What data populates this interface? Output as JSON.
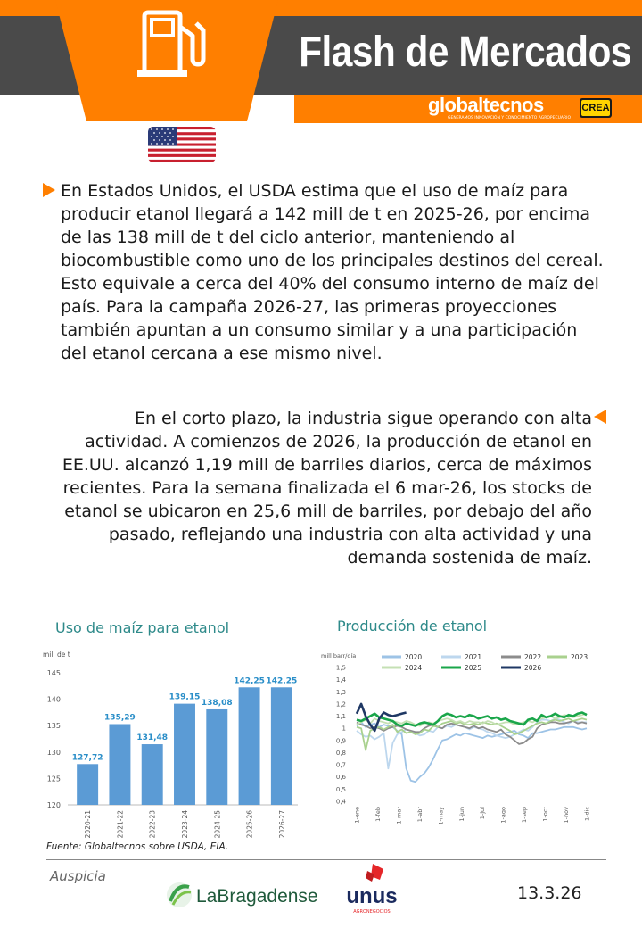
{
  "header": {
    "title": "Flash de Mercados",
    "brand_name": "globaltecnos",
    "brand_tagline": "GENERAMOS INNOVACIÓN Y CONOCIMIENTO AGROPECUARIO",
    "partner_badge": "CREA",
    "icon": "fuel-pump-icon",
    "colors": {
      "orange": "#ff7f00",
      "gray": "#4a4a4a"
    }
  },
  "flag": {
    "icon": "us-flag-icon"
  },
  "paragraphs": [
    "En Estados Unidos, el USDA estima que el uso de maíz para producir etanol llegará a 142 mill de t en 2025-26, por encima de las 138 mill de t del ciclo anterior, manteniendo al biocombustible como uno de los principales destinos del cereal. Esto equivale a cerca del 40% del consumo interno de maíz del país. Para la campaña 2026-27, las primeras proyecciones también apuntan a un consumo similar y a una participación del etanol cercana a ese mismo nivel.",
    "En el corto plazo, la industria sigue operando con alta actividad. A comienzos de 2026, la producción de etanol en EE.UU. alcanzó 1,19 mill de barriles diarios, cerca de máximos recientes. Para la semana finalizada el 6 mar-26, los stocks de etanol se ubicaron en 25,6 mill de barriles, por debajo del año pasado, reflejando una industria con alta actividad y una demanda sostenida de maíz."
  ],
  "chart_data": [
    {
      "type": "bar",
      "title": "Uso de maíz para etanol",
      "ylabel": "mill de t",
      "categories": [
        "2020-21",
        "2021-22",
        "2022-23",
        "2023-24",
        "2024-25",
        "2025-26",
        "2026-27"
      ],
      "values": [
        127.72,
        135.29,
        131.48,
        139.15,
        138.08,
        142.25,
        142.25
      ],
      "data_labels": [
        "127,72",
        "135,29",
        "131,48",
        "139,15",
        "138,08",
        "142,25",
        "142,25"
      ],
      "ylim": [
        120,
        145
      ],
      "yticks": [
        120,
        125,
        130,
        135,
        140,
        145
      ],
      "color": "#5b9bd5",
      "label_color": "#2a8ec8"
    },
    {
      "type": "line",
      "title": "Producción de etanol",
      "ylabel": "mill barr/día",
      "ylim": [
        0.4,
        1.5
      ],
      "yticks": [
        "0,4",
        "0,5",
        "0,6",
        "0,7",
        "0,8",
        "0,9",
        "1",
        "1,1",
        "1,2",
        "1,3",
        "1,4",
        "1,5"
      ],
      "xticks": [
        "1-ene",
        "1-feb",
        "1-mar",
        "1-abr",
        "1-may",
        "1-jun",
        "1-jul",
        "1-ago",
        "1-sep",
        "1-oct",
        "1-nov",
        "1-dic"
      ],
      "x_weeks": 52,
      "series": [
        {
          "name": "2020",
          "color": "#9dc3e6",
          "values": [
            1.02,
            1.05,
            1.01,
            1.03,
            1.04,
            1.01,
            1.03,
            1.02,
            1.01,
            0.98,
            0.95,
            0.67,
            0.57,
            0.56,
            0.6,
            0.63,
            0.68,
            0.75,
            0.83,
            0.9,
            0.91,
            0.93,
            0.95,
            0.94,
            0.96,
            0.95,
            0.94,
            0.93,
            0.92,
            0.94,
            0.93,
            0.94,
            0.95,
            0.96,
            0.97,
            0.98,
            0.95,
            0.94,
            0.92,
            0.96,
            0.96,
            0.97,
            0.98,
            0.99,
            0.99,
            1.0,
            1.01,
            1.01,
            1.01,
            1.0,
            0.99,
            1.0
          ]
        },
        {
          "name": "2021",
          "color": "#bdd7ee",
          "values": [
            0.98,
            0.95,
            0.93,
            0.94,
            0.91,
            0.93,
            0.96,
            0.67,
            0.88,
            0.95,
            0.97,
            0.99,
            0.98,
            0.96,
            0.94,
            0.95,
            0.98,
            0.97,
            1.01,
            1.0,
            1.02,
            1.01,
            1.03,
            1.02,
            1.01,
            0.99,
            1.01,
            1.0,
            0.99,
            0.97,
            0.96,
            0.94,
            0.93,
            0.92,
            0.93,
            0.95,
            0.97,
            0.99,
            0.98,
            1.01,
            1.05,
            1.07,
            1.07,
            1.06,
            1.08,
            1.07,
            1.05,
            1.04,
            1.06,
            1.05,
            1.05,
            1.05
          ]
        },
        {
          "name": "2022",
          "color": "#8c8c8c",
          "values": [
            1.05,
            1.03,
            1.02,
            1.0,
            1.01,
            1.0,
            0.98,
            1.0,
            1.01,
            1.02,
            1.01,
            0.99,
            0.98,
            0.97,
            0.97,
            1.0,
            1.02,
            1.03,
            1.01,
            1.0,
            1.03,
            1.04,
            1.03,
            1.02,
            1.01,
            1.0,
            1.02,
            1.0,
            1.01,
            0.99,
            0.98,
            0.97,
            0.99,
            0.95,
            0.93,
            0.9,
            0.87,
            0.88,
            0.91,
            0.93,
            1.0,
            1.03,
            1.04,
            1.05,
            1.05,
            1.04,
            1.04,
            1.05,
            1.06,
            1.04,
            1.05,
            1.04
          ]
        },
        {
          "name": "2023",
          "color": "#a9d18e",
          "values": [
            1.01,
            1.0,
            0.82,
            0.98,
            1.0,
            1.01,
            0.99,
            1.01,
            1.03,
            0.97,
            0.99,
            0.96,
            0.97,
            0.95,
            0.96,
            0.99,
            0.98,
            1.02,
            1.01,
            1.04,
            1.05,
            1.06,
            1.04,
            1.05,
            1.03,
            1.03,
            1.04,
            1.03,
            1.05,
            1.04,
            1.03,
            1.04,
            1.02,
            1.0,
            0.98,
            0.95,
            0.96,
            0.98,
            1.0,
            1.02,
            1.04,
            1.05,
            1.04,
            1.06,
            1.07,
            1.06,
            1.07,
            1.08,
            1.06,
            1.07,
            1.08,
            1.07
          ]
        },
        {
          "name": "2024",
          "color": "#c5e0b4",
          "values": [
            1.03,
            1.05,
            1.07,
            1.04,
            1.08,
            1.06,
            1.05,
            1.04,
            1.06,
            1.05,
            1.04,
            1.06,
            1.05,
            1.03,
            1.02,
            1.04,
            1.05,
            1.04,
            1.06,
            1.07,
            1.08,
            1.07,
            1.05,
            1.06,
            1.04,
            1.06,
            1.05,
            1.05,
            1.04,
            1.06,
            1.05,
            1.03,
            1.04,
            1.05,
            1.05,
            1.03,
            1.04,
            1.05,
            1.06,
            1.05,
            1.07,
            1.08,
            1.09,
            1.1,
            1.08,
            1.09,
            1.11,
            1.1,
            1.09,
            1.1,
            1.11,
            1.12
          ]
        },
        {
          "name": "2025",
          "color": "#1aa64a",
          "values": [
            1.07,
            1.06,
            1.08,
            1.1,
            1.12,
            1.09,
            1.08,
            1.07,
            1.06,
            1.03,
            1.02,
            1.04,
            1.03,
            1.02,
            1.04,
            1.05,
            1.04,
            1.03,
            1.06,
            1.1,
            1.12,
            1.11,
            1.09,
            1.1,
            1.09,
            1.11,
            1.1,
            1.08,
            1.09,
            1.1,
            1.08,
            1.09,
            1.07,
            1.08,
            1.06,
            1.05,
            1.04,
            1.03,
            1.07,
            1.08,
            1.06,
            1.11,
            1.09,
            1.1,
            1.12,
            1.1,
            1.09,
            1.11,
            1.1,
            1.12,
            1.13,
            1.11
          ]
        },
        {
          "name": "2026",
          "color": "#1f3864",
          "values": [
            1.12,
            1.2,
            1.1,
            1.03,
            0.98,
            1.08,
            1.13,
            1.11,
            1.1,
            1.11,
            1.12,
            1.13
          ]
        }
      ]
    }
  ],
  "footer": {
    "source": "Fuente: Globaltecnos sobre USDA, EIA.",
    "sponsor_label": "Auspicia",
    "sponsor1": "LaBragadense",
    "sponsor2": "unus",
    "sponsor2_tagline": "AGRONEGOCIOS",
    "date": "13.3.26"
  }
}
